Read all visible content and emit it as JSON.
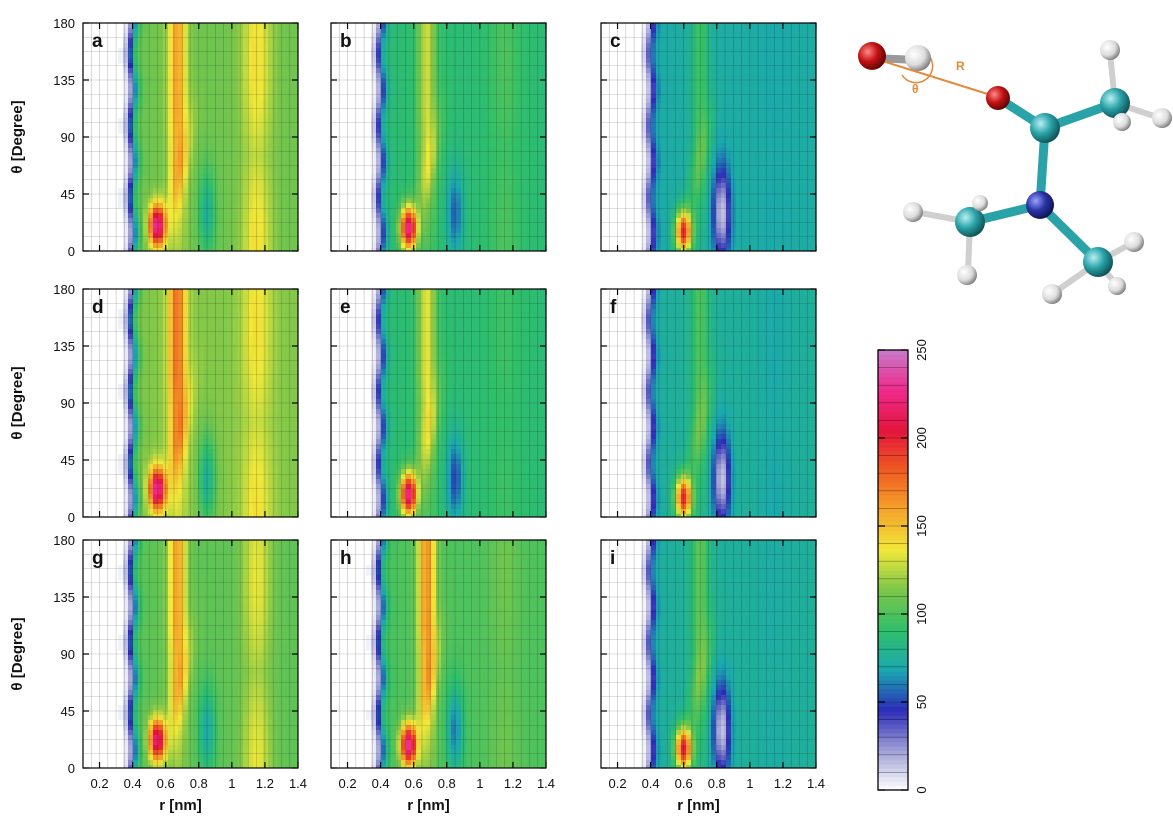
{
  "chart_data": {
    "type": "heatmap",
    "layout": "3x3 grid of panels",
    "xlabel": "r [nm]",
    "ylabel": "θ [Degree]",
    "xlim": [
      0.1,
      1.4
    ],
    "ylim": [
      0,
      180
    ],
    "x_ticks": [
      "0.2",
      "0.4",
      "0.6",
      "0.8",
      "1",
      "1.2",
      "1.4"
    ],
    "y_ticks": [
      "0",
      "45",
      "90",
      "135",
      "180"
    ],
    "x_tick_values": [
      0.2,
      0.4,
      0.6,
      0.8,
      1.0,
      1.2,
      1.4
    ],
    "y_tick_values": [
      0,
      45,
      90,
      135,
      180
    ],
    "colorbar": {
      "range": [
        0,
        250
      ],
      "ticks": [
        "0",
        "50",
        "100",
        "150",
        "200",
        "250"
      ],
      "tick_values": [
        0,
        50,
        100,
        150,
        200,
        250
      ],
      "colors": [
        "#ffffff",
        "#9f9fd6",
        "#2c2cb8",
        "#1aa8b0",
        "#2fbf6a",
        "#7cc64a",
        "#f0e83a",
        "#f5a52a",
        "#ef5b22",
        "#e3153c",
        "#ef2a8c",
        "#c879c9"
      ]
    },
    "panels": [
      {
        "label": "a",
        "peak1": {
          "r": 0.55,
          "theta": 20,
          "value": 235
        },
        "upper_band": {
          "r": 0.67,
          "value": 160
        },
        "far_band": {
          "r": 1.15,
          "value": 140
        },
        "bulk": 110,
        "depletion": {
          "r": 0.85,
          "value": 75
        }
      },
      {
        "label": "b",
        "peak1": {
          "r": 0.57,
          "theta": 18,
          "value": 225
        },
        "upper_band": {
          "r": 0.68,
          "value": 130
        },
        "far_band": {
          "r": 1.15,
          "value": 100
        },
        "bulk": 88,
        "depletion": {
          "r": 0.85,
          "value": 55
        }
      },
      {
        "label": "c",
        "peak1": {
          "r": 0.6,
          "theta": 15,
          "value": 195
        },
        "upper_band": {
          "r": 0.7,
          "value": 95
        },
        "far_band": {
          "r": 1.15,
          "value": 70
        },
        "bulk": 72,
        "depletion": {
          "r": 0.83,
          "value": 12
        }
      },
      {
        "label": "d",
        "peak1": {
          "r": 0.55,
          "theta": 22,
          "value": 235
        },
        "upper_band": {
          "r": 0.67,
          "value": 175
        },
        "far_band": {
          "r": 1.15,
          "value": 140
        },
        "bulk": 115,
        "depletion": {
          "r": 0.85,
          "value": 75
        }
      },
      {
        "label": "e",
        "peak1": {
          "r": 0.57,
          "theta": 18,
          "value": 225
        },
        "upper_band": {
          "r": 0.68,
          "value": 135
        },
        "far_band": {
          "r": 1.15,
          "value": 95
        },
        "bulk": 88,
        "depletion": {
          "r": 0.85,
          "value": 50
        }
      },
      {
        "label": "f",
        "peak1": {
          "r": 0.6,
          "theta": 15,
          "value": 195
        },
        "upper_band": {
          "r": 0.7,
          "value": 100
        },
        "far_band": {
          "r": 1.15,
          "value": 70
        },
        "bulk": 75,
        "depletion": {
          "r": 0.83,
          "value": 12
        }
      },
      {
        "label": "g",
        "peak1": {
          "r": 0.55,
          "theta": 22,
          "value": 225
        },
        "upper_band": {
          "r": 0.67,
          "value": 160
        },
        "far_band": {
          "r": 1.15,
          "value": 135
        },
        "bulk": 105,
        "depletion": {
          "r": 0.85,
          "value": 70
        }
      },
      {
        "label": "h",
        "peak1": {
          "r": 0.57,
          "theta": 18,
          "value": 230
        },
        "upper_band": {
          "r": 0.68,
          "value": 165
        },
        "far_band": {
          "r": 1.15,
          "value": 110
        },
        "bulk": 100,
        "depletion": {
          "r": 0.85,
          "value": 60
        }
      },
      {
        "label": "i",
        "peak1": {
          "r": 0.6,
          "theta": 15,
          "value": 200
        },
        "upper_band": {
          "r": 0.7,
          "value": 105
        },
        "far_band": {
          "r": 1.15,
          "value": 72
        },
        "bulk": 75,
        "depletion": {
          "r": 0.83,
          "value": 12
        }
      }
    ]
  },
  "molecule": {
    "labels": {
      "distance": "R",
      "angle": "θ"
    },
    "colors": {
      "oxygen": "#c41212",
      "carbon": "#2aa3a8",
      "nitrogen": "#2a34a6",
      "hydrogen": "#e8e8e8",
      "bond": "#2aa3a8",
      "vector": "#e58a3a"
    }
  }
}
